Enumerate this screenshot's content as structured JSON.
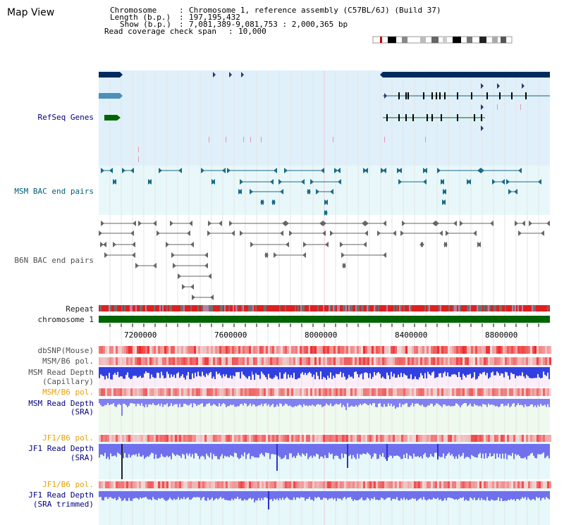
{
  "title": "Map View",
  "info": {
    "chromosome_label": "Chromosome",
    "chromosome_value": "Chromosome 1, reference assembly (C57BL/6J) (Build 37)",
    "length_label": "Length (b.p.)",
    "length_value": "197,195,432",
    "show_label": "Show (b.p.)",
    "show_value": "7,081,389-9,081,753 : 2,000,365 bp",
    "coverage_label": "Read coverage check span",
    "coverage_value": "10,000"
  },
  "tracks": {
    "refseq": "RefSeq Genes",
    "msm_bac": "MSM BAC end pairs",
    "b6n_bac": "B6N BAC end pairs",
    "repeat": "Repeat",
    "chromosome": "chromosome 1",
    "dbsnp": "dbSNP(Mouse)",
    "msm_b6_pol_1": "MSM/B6 pol.",
    "msm_depth_cap_1": "MSM Read Depth",
    "msm_depth_cap_2": "(Capillary)",
    "msm_b6_pol_2": "MSM/B6 pol.",
    "msm_depth_sra_1": "MSM Read Depth",
    "msm_depth_sra_2": "(SRA)",
    "jf1_b6_pol_1": "JF1/B6 pol.",
    "jf1_depth_sra_1": "JF1 Read Depth",
    "jf1_depth_sra_2": "(SRA)",
    "jf1_b6_pol_2": "JF1/B6 pol.",
    "jf1_depth_trim_1": "JF1 Read Depth",
    "jf1_depth_trim_2": "(SRA trimmed)"
  },
  "axis_ticks": [
    "7200000",
    "7600000",
    "8000000",
    "8400000",
    "8800000"
  ],
  "colors": {
    "refseq_bg": "#dff0fa",
    "msm_bac_bg": "#e8f8fa",
    "capillary_bg": "#fbeefa",
    "sra_bg": "#eefaee",
    "jf1_bg": "#e6f8fa",
    "navy": "#002b5c",
    "green": "#006400"
  }
}
